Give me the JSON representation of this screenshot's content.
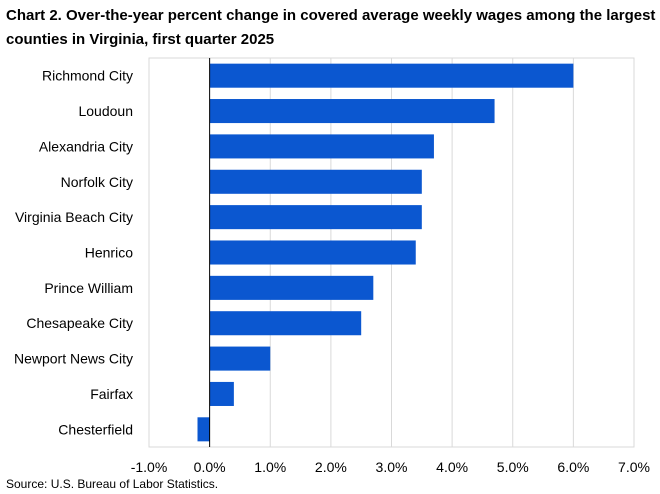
{
  "header": {
    "title": "Chart 2. Over-the-year percent change in covered average weekly wages among the largest counties in Virginia, first quarter 2025"
  },
  "footer": {
    "source": "Source: U.S. Bureau of Labor Statistics."
  },
  "chart_data": {
    "type": "bar",
    "orientation": "horizontal",
    "title": "Chart 2. Over-the-year percent change in covered average weekly wages among the largest counties in Virginia, first quarter 2025",
    "xlabel": "",
    "ylabel": "",
    "categories": [
      "Richmond City",
      "Loudoun",
      "Alexandria City",
      "Norfolk City",
      "Virginia Beach City",
      "Henrico",
      "Prince William",
      "Chesapeake City",
      "Newport News City",
      "Fairfax",
      "Chesterfield"
    ],
    "values": [
      6.0,
      4.7,
      3.7,
      3.5,
      3.5,
      3.4,
      2.7,
      2.5,
      1.0,
      0.4,
      -0.2
    ],
    "xlim": [
      -1.0,
      7.0
    ],
    "xticks": [
      -1.0,
      0.0,
      1.0,
      2.0,
      3.0,
      4.0,
      5.0,
      6.0,
      7.0
    ],
    "xtick_labels": [
      "-1.0%",
      "0.0%",
      "1.0%",
      "2.0%",
      "3.0%",
      "4.0%",
      "5.0%",
      "6.0%",
      "7.0%"
    ],
    "grid": true,
    "legend": "none",
    "bar_color": "#0b57d0",
    "grid_color": "#d9d9d9",
    "axis_color": "#000000"
  }
}
